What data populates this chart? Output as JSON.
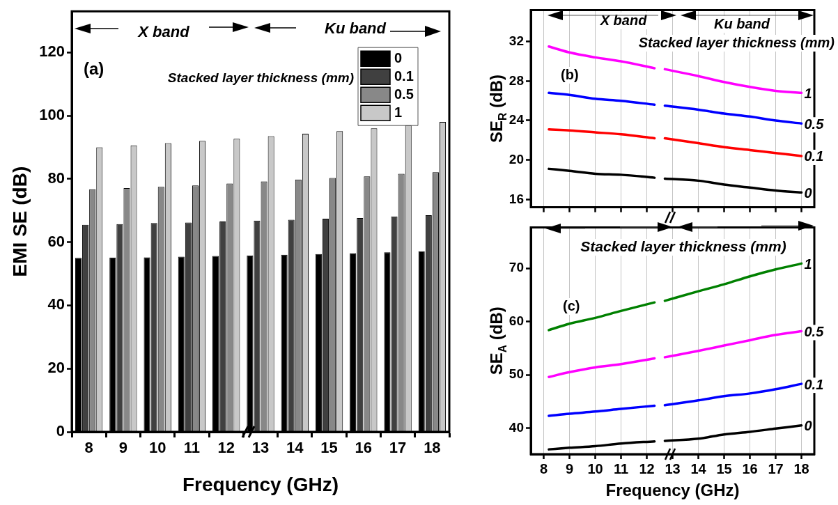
{
  "chart_data": [
    {
      "type": "bar",
      "xlabel": "Frequency (GHz)",
      "ylabel": "EMI SE (dB)",
      "legend_title": "Stacked layer thickness (mm)",
      "legend": "top right",
      "annotations": [
        "(a)",
        "X band",
        "Ku band"
      ],
      "categories": [
        "8",
        "9",
        "10",
        "11",
        "12",
        "13",
        "14",
        "15",
        "16",
        "17",
        "18"
      ],
      "series": [
        {
          "name": "0",
          "color": "#000000",
          "values": [
            55.0,
            55.1,
            55.2,
            55.4,
            55.6,
            55.8,
            56.0,
            56.2,
            56.5,
            56.8,
            57.1
          ]
        },
        {
          "name": "0.1",
          "color": "#404040",
          "values": [
            65.5,
            65.7,
            66.0,
            66.2,
            66.5,
            66.8,
            67.1,
            67.4,
            67.6,
            68.1,
            68.5
          ]
        },
        {
          "name": "0.5",
          "color": "#888888",
          "values": [
            76.7,
            77.1,
            77.5,
            77.9,
            78.5,
            79.2,
            79.8,
            80.3,
            80.8,
            81.6,
            82.1
          ]
        },
        {
          "name": "1",
          "color": "#c8c8c8",
          "values": [
            90.0,
            90.6,
            91.3,
            92.0,
            92.7,
            93.5,
            94.3,
            95.1,
            96.0,
            97.0,
            98.0
          ]
        }
      ],
      "ylim": [
        0,
        133
      ],
      "yticks": [
        0,
        20,
        40,
        60,
        80,
        100,
        120
      ],
      "grid": false
    },
    {
      "type": "line",
      "ylabel": "SE$_{R}$ (dB)",
      "annotations": [
        "(b)",
        "X band",
        "Ku band",
        "Stacked layer thickness (mm)"
      ],
      "x": [
        8.2,
        9,
        10,
        11,
        12.3,
        12.5,
        12.7,
        14,
        15,
        16,
        17,
        18
      ],
      "series": [
        {
          "name": "1",
          "color": "#ff00ff",
          "values": [
            31.5,
            30.9,
            30.4,
            30.0,
            29.3,
            null,
            29.2,
            28.5,
            27.9,
            27.4,
            27.0,
            26.8
          ]
        },
        {
          "name": "0.5",
          "color": "#0000ff",
          "values": [
            26.8,
            26.6,
            26.2,
            26.0,
            25.6,
            null,
            25.5,
            25.1,
            24.7,
            24.4,
            24.0,
            23.7
          ]
        },
        {
          "name": "0.1",
          "color": "#ff0000",
          "values": [
            23.1,
            23.0,
            22.8,
            22.6,
            22.2,
            null,
            22.2,
            21.7,
            21.3,
            21.0,
            20.7,
            20.4
          ]
        },
        {
          "name": "0",
          "color": "#000000",
          "values": [
            19.1,
            18.9,
            18.6,
            18.5,
            18.2,
            null,
            18.1,
            17.9,
            17.5,
            17.2,
            16.9,
            16.7
          ]
        }
      ],
      "xlim": [
        7.5,
        18.5
      ],
      "xticks": [
        8,
        9,
        10,
        11,
        12,
        13,
        14,
        15,
        16,
        17,
        18
      ],
      "ylim": [
        15.2,
        35.2
      ],
      "yticks": [
        16,
        20,
        24,
        28,
        32
      ],
      "grid": "x",
      "legend": false,
      "tick_labels": "y",
      "marker": "none",
      "line_style": "solid"
    },
    {
      "type": "line",
      "xlabel": "Frequency (GHz)",
      "ylabel": "SE$_{A}$ (dB)",
      "annotations": [
        "(c)",
        "Stacked layer thickness (mm)"
      ],
      "x": [
        8.2,
        9,
        10,
        11,
        12.3,
        12.5,
        12.7,
        14,
        15,
        16,
        17,
        18
      ],
      "series": [
        {
          "name": "1",
          "color": "#008000",
          "values": [
            58.4,
            59.6,
            60.7,
            62.0,
            63.6,
            null,
            63.9,
            65.7,
            67.0,
            68.5,
            69.8,
            70.9
          ]
        },
        {
          "name": "0.5",
          "color": "#ff00ff",
          "values": [
            49.6,
            50.5,
            51.4,
            52.0,
            53.1,
            null,
            53.3,
            54.5,
            55.5,
            56.5,
            57.5,
            58.2
          ]
        },
        {
          "name": "0.1",
          "color": "#0000ff",
          "values": [
            42.3,
            42.7,
            43.1,
            43.6,
            44.2,
            null,
            44.3,
            45.2,
            46.0,
            46.5,
            47.3,
            48.3
          ]
        },
        {
          "name": "0",
          "color": "#000000",
          "values": [
            36.0,
            36.3,
            36.6,
            37.1,
            37.5,
            null,
            37.6,
            38.0,
            38.8,
            39.3,
            39.9,
            40.5
          ]
        }
      ],
      "xlim": [
        7.5,
        18.5
      ],
      "xticks": [
        8,
        9,
        10,
        11,
        12,
        13,
        14,
        15,
        16,
        17,
        18
      ],
      "ylim": [
        35.1,
        77.7
      ],
      "yticks": [
        40,
        50,
        60,
        70
      ],
      "grid": "x",
      "legend": false,
      "marker": "none",
      "line_style": "solid"
    }
  ]
}
